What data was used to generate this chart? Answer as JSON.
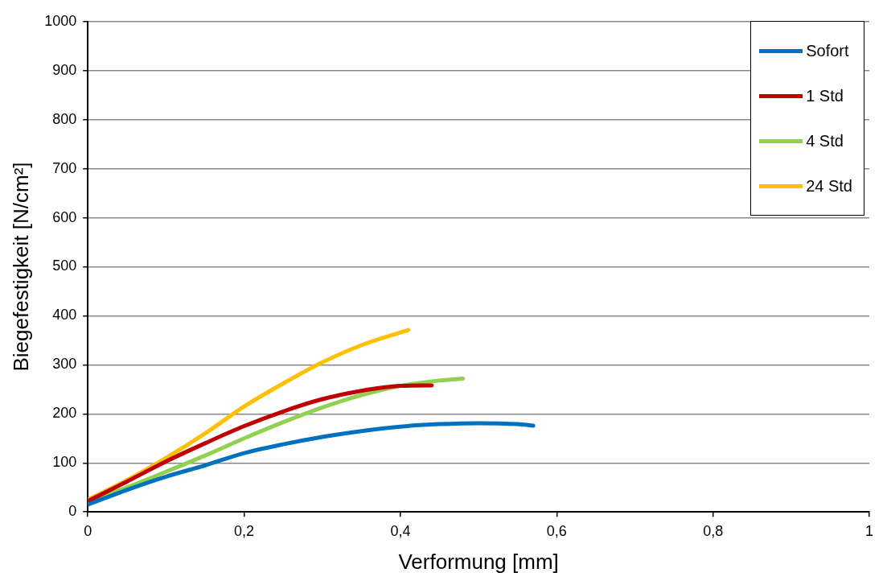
{
  "chart_data": {
    "type": "line",
    "xlabel": "Verformung [mm]",
    "ylabel": "Biegefestigkeit [N/cm²]",
    "xlim": [
      0,
      1
    ],
    "xticks": [
      0,
      {
        "value": 0.2,
        "label": "0,2"
      },
      {
        "value": 0.4,
        "label": "0,4"
      },
      {
        "value": 0.6,
        "label": "0,6"
      },
      {
        "value": 0.8,
        "label": "0,8"
      },
      1
    ],
    "ylim": [
      0,
      1000
    ],
    "yticks": [
      0,
      100,
      200,
      300,
      400,
      500,
      600,
      700,
      800,
      900,
      1000
    ],
    "grid": "y",
    "legend": "top right",
    "marker": "none",
    "line_style": "solid",
    "series": [
      {
        "name": "Sofort",
        "color": "#0070c0",
        "x": [
          0,
          0.05,
          0.1,
          0.15,
          0.2,
          0.25,
          0.3,
          0.35,
          0.4,
          0.45,
          0.5,
          0.55,
          0.57
        ],
        "values": [
          15,
          45,
          72,
          95,
          120,
          138,
          153,
          165,
          174,
          179,
          181,
          179,
          176
        ]
      },
      {
        "name": "1 Std",
        "color": "#c00000",
        "x": [
          0,
          0.05,
          0.1,
          0.15,
          0.2,
          0.25,
          0.3,
          0.35,
          0.4,
          0.44
        ],
        "values": [
          22,
          62,
          103,
          140,
          175,
          205,
          230,
          247,
          257,
          258
        ]
      },
      {
        "name": "4 Std",
        "color": "#92d050",
        "x": [
          0,
          0.05,
          0.1,
          0.15,
          0.2,
          0.25,
          0.3,
          0.35,
          0.4,
          0.45,
          0.48
        ],
        "values": [
          20,
          50,
          82,
          115,
          150,
          183,
          213,
          238,
          257,
          268,
          272
        ]
      },
      {
        "name": "24 Std",
        "color": "#ffc000",
        "x": [
          0,
          0.05,
          0.1,
          0.15,
          0.2,
          0.25,
          0.3,
          0.35,
          0.41
        ],
        "values": [
          25,
          65,
          110,
          160,
          215,
          262,
          305,
          340,
          371
        ]
      }
    ]
  }
}
